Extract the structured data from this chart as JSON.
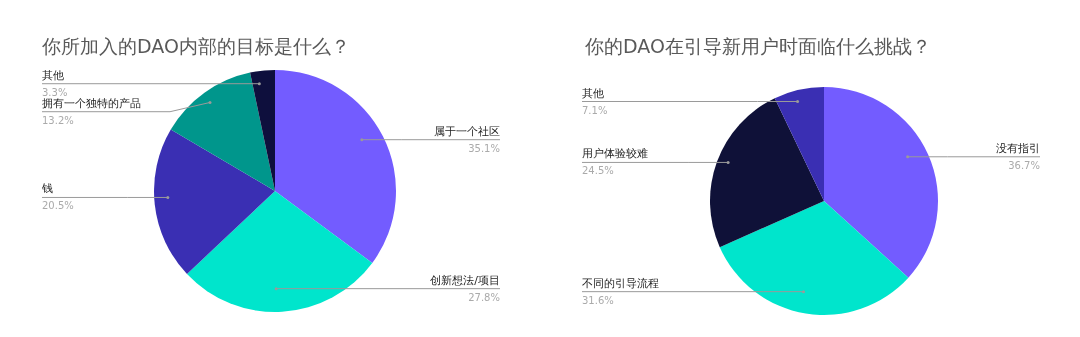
{
  "chart_data": [
    {
      "type": "pie",
      "title": "你所加入的DAO内部的目标是什么？",
      "categories": [
        "属于一个社区",
        "创新想法/项目",
        "钱",
        "拥有一个独特的产品",
        "其他"
      ],
      "values": [
        35.1,
        27.8,
        20.5,
        13.2,
        3.3
      ],
      "colors": [
        "#735cff",
        "#00e5cc",
        "#3a2fb3",
        "#00968c",
        "#0e0f3d"
      ],
      "value_labels": [
        "35.1%",
        "27.8%",
        "20.5%",
        "13.2%",
        "3.3%"
      ]
    },
    {
      "type": "pie",
      "title": "你的DAO在引导新用户时面临什么挑战？",
      "categories": [
        "没有指引",
        "不同的引导流程",
        "用户体验较难",
        "其他"
      ],
      "values": [
        36.7,
        31.6,
        24.5,
        7.1
      ],
      "colors": [
        "#735cff",
        "#00e5cc",
        "#0f1138",
        "#3a2fb3"
      ],
      "value_labels": [
        "36.7%",
        "31.6%",
        "24.5%",
        "7.1%"
      ]
    }
  ]
}
